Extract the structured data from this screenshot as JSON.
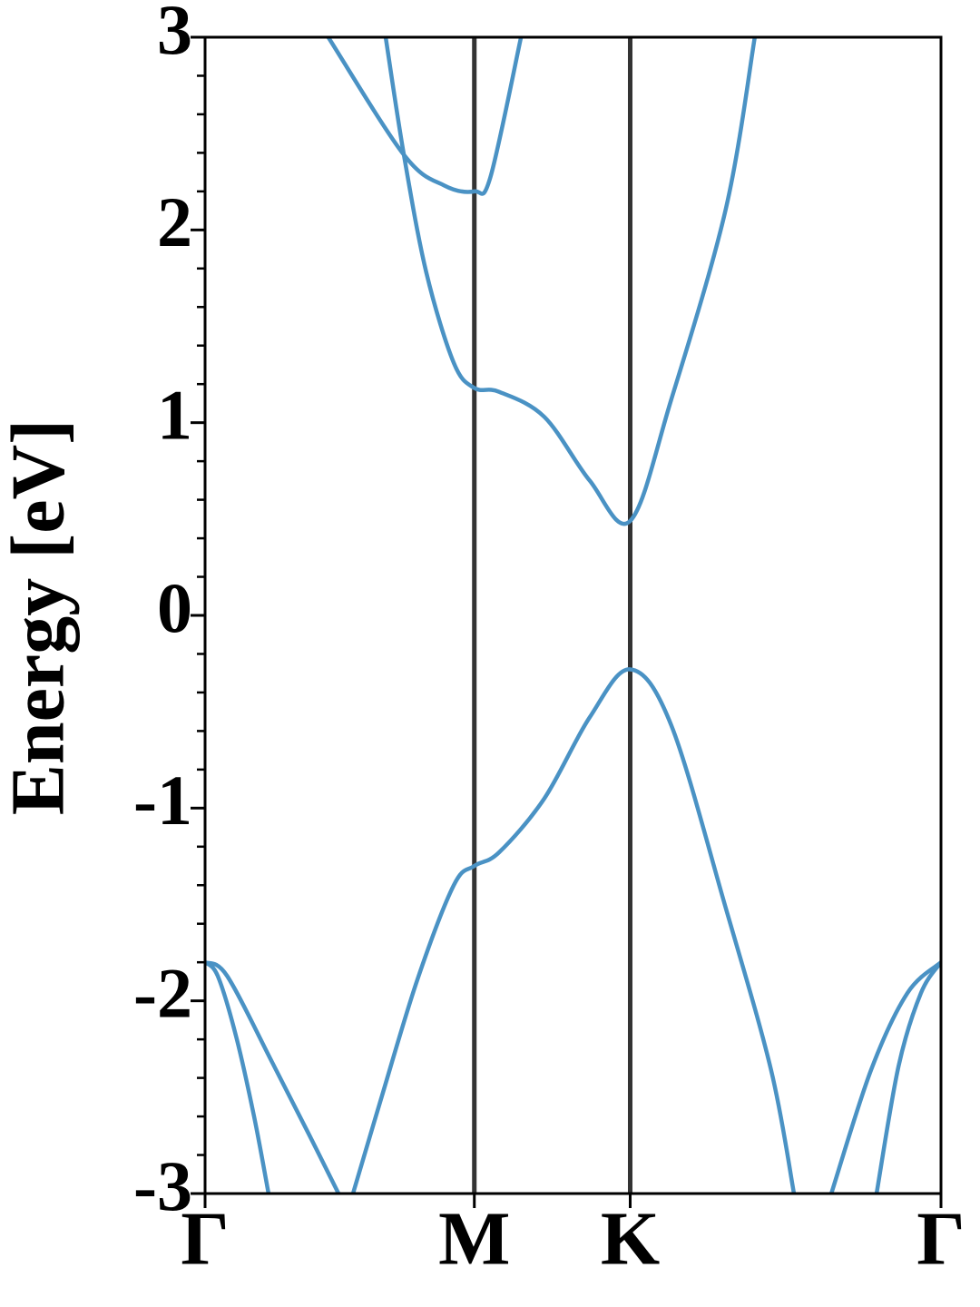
{
  "chart_data": {
    "type": "line",
    "ylabel": "Energy [eV]",
    "xlim": [
      0,
      1.577
    ],
    "ylim": [
      -3,
      3
    ],
    "xticks": [
      {
        "value": 0,
        "label": "Γ"
      },
      {
        "value": 0.577,
        "label": "M"
      },
      {
        "value": 0.911,
        "label": "K"
      },
      {
        "value": 1.577,
        "label": "Γ"
      }
    ],
    "yticks": [
      -3,
      -2,
      -1,
      0,
      1,
      2,
      3
    ],
    "yminorticks": [
      -2.8,
      -2.6,
      -2.4,
      -2.2,
      -1.8,
      -1.6,
      -1.4,
      -1.2,
      -0.8,
      -0.6,
      -0.4,
      -0.2,
      0.2,
      0.4,
      0.6,
      0.8,
      1.2,
      1.4,
      1.6,
      1.8,
      2.2,
      2.4,
      2.6,
      2.8
    ],
    "xgrid": true,
    "grid_color": "#333333",
    "series": [
      {
        "color": "#4a92c4",
        "x": [
          0,
          0.027,
          0.066,
          0.105,
          0.136
        ],
        "values": [
          -1.8,
          -1.87,
          -2.18,
          -2.6,
          -3
        ]
      },
      {
        "color": "#4a92c4",
        "x": [
          0,
          0.047,
          0.144,
          0.222,
          0.286
        ],
        "values": [
          -1.8,
          -1.87,
          -2.32,
          -2.69,
          -3
        ]
      },
      {
        "color": "#4a92c4",
        "x": [
          0.317,
          0.377,
          0.455,
          0.533,
          0.577,
          0.63,
          0.727,
          0.824,
          0.911,
          0.999,
          1.116,
          1.213,
          1.262
        ],
        "values": [
          -3,
          -2.51,
          -1.89,
          -1.4,
          -1.3,
          -1.23,
          -0.95,
          -0.53,
          -0.28,
          -0.57,
          -1.52,
          -2.36,
          -3
        ]
      },
      {
        "color": "#4a92c4",
        "x": [
          1.342,
          1.427,
          1.505,
          1.577
        ],
        "values": [
          -3,
          -2.36,
          -1.96,
          -1.8
        ]
      },
      {
        "color": "#4a92c4",
        "x": [
          1.439,
          1.486,
          1.534,
          1.577
        ],
        "values": [
          -3,
          -2.34,
          -1.96,
          -1.8
        ]
      },
      {
        "color": "#4a92c4",
        "x": [
          0.387,
          0.426,
          0.474,
          0.533,
          0.577,
          0.63,
          0.727,
          0.824,
          0.911,
          0.999,
          1.116,
          1.178
        ],
        "values": [
          3,
          2.39,
          1.78,
          1.31,
          1.18,
          1.16,
          1.03,
          0.7,
          0.49,
          1.12,
          2.11,
          3
        ]
      },
      {
        "color": "#4a92c4",
        "x": [
          0.264,
          0.426,
          0.513,
          0.577,
          0.611,
          0.677
        ],
        "values": [
          3,
          2.39,
          2.23,
          2.2,
          2.27,
          3
        ]
      }
    ]
  }
}
